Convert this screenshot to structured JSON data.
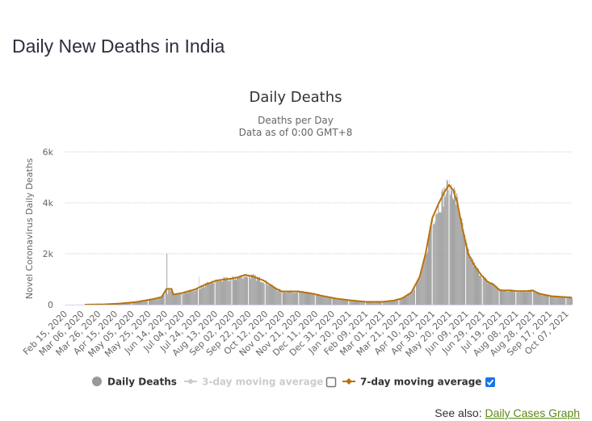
{
  "page": {
    "title": "Daily New Deaths in India",
    "see_also_label": "See also:",
    "see_also_link": "Daily Cases Graph"
  },
  "colors": {
    "bars": "#999999",
    "ma7": "#b8720b",
    "ma3_disabled": "#cccccc",
    "grid": "#e6e6e6",
    "axis": "#ccd6eb",
    "link": "#5c8a18",
    "checkbox_checked": "#1a73e8"
  },
  "chart_data": {
    "type": "bar",
    "title": "Daily Deaths",
    "subtitle_lines": [
      "Deaths per Day",
      "Data as of 0:00 GMT+8"
    ],
    "xlabel": "",
    "ylabel": "Novel Coronavirus Daily Deaths",
    "ylim": [
      0,
      6000
    ],
    "yticks": [
      0,
      2000,
      4000,
      6000
    ],
    "ytick_labels": [
      "0",
      "2k",
      "4k",
      "6k"
    ],
    "grid": true,
    "x_start": "2020-02-15",
    "x_end": "2021-10-14",
    "xtick_labels": [
      "Feb 15, 2020",
      "Mar 06, 2020",
      "Mar 26, 2020",
      "Apr 15, 2020",
      "May 05, 2020",
      "May 25, 2020",
      "Jun 14, 2020",
      "Jul 04, 2020",
      "Jul 24, 2020",
      "Aug 13, 2020",
      "Sep 02, 2020",
      "Sep 22, 2020",
      "Oct 12, 2020",
      "Nov 01, 2020",
      "Nov 21, 2020",
      "Dec 11, 2020",
      "Dec 31, 2020",
      "Jan 20, 2021",
      "Feb 09, 2021",
      "Mar 01, 2021",
      "Mar 21, 2021",
      "Apr 10, 2021",
      "Apr 30, 2021",
      "May 20, 2021",
      "Jun 09, 2021",
      "Jun 29, 2021",
      "Jul 19, 2021",
      "Aug 08, 2021",
      "Aug 28, 2021",
      "Sep 17, 2021",
      "Oct 07, 2021"
    ],
    "legend": {
      "placement": "bottom-center",
      "items": [
        {
          "label": "Daily Deaths",
          "enabled": true
        },
        {
          "label": "3-day moving average",
          "enabled": false,
          "checked": false
        },
        {
          "label": "7-day moving average",
          "enabled": true,
          "checked": true
        }
      ]
    },
    "series": [
      {
        "name": "7-day moving average",
        "type": "line",
        "points": [
          [
            "2020-03-10",
            0
          ],
          [
            "2020-04-01",
            10
          ],
          [
            "2020-04-20",
            40
          ],
          [
            "2020-05-10",
            100
          ],
          [
            "2020-05-31",
            220
          ],
          [
            "2020-06-10",
            300
          ],
          [
            "2020-06-16",
            620
          ],
          [
            "2020-06-22",
            620
          ],
          [
            "2020-06-24",
            400
          ],
          [
            "2020-07-04",
            450
          ],
          [
            "2020-07-20",
            600
          ],
          [
            "2020-08-01",
            780
          ],
          [
            "2020-08-15",
            950
          ],
          [
            "2020-09-01",
            1020
          ],
          [
            "2020-09-10",
            1080
          ],
          [
            "2020-09-18",
            1170
          ],
          [
            "2020-09-28",
            1100
          ],
          [
            "2020-10-10",
            950
          ],
          [
            "2020-10-25",
            630
          ],
          [
            "2020-11-01",
            520
          ],
          [
            "2020-11-10",
            520
          ],
          [
            "2020-11-20",
            520
          ],
          [
            "2020-12-05",
            450
          ],
          [
            "2020-12-20",
            340
          ],
          [
            "2021-01-05",
            240
          ],
          [
            "2021-01-25",
            160
          ],
          [
            "2021-02-10",
            110
          ],
          [
            "2021-03-01",
            110
          ],
          [
            "2021-03-15",
            160
          ],
          [
            "2021-03-25",
            250
          ],
          [
            "2021-04-05",
            480
          ],
          [
            "2021-04-15",
            1100
          ],
          [
            "2021-04-22",
            2000
          ],
          [
            "2021-04-30",
            3400
          ],
          [
            "2021-05-08",
            4000
          ],
          [
            "2021-05-15",
            4450
          ],
          [
            "2021-05-20",
            4700
          ],
          [
            "2021-05-25",
            4500
          ],
          [
            "2021-05-30",
            4000
          ],
          [
            "2021-06-05",
            3000
          ],
          [
            "2021-06-12",
            2000
          ],
          [
            "2021-06-20",
            1500
          ],
          [
            "2021-06-28",
            1150
          ],
          [
            "2021-07-05",
            900
          ],
          [
            "2021-07-12",
            800
          ],
          [
            "2021-07-20",
            560
          ],
          [
            "2021-08-01",
            560
          ],
          [
            "2021-08-10",
            530
          ],
          [
            "2021-08-20",
            530
          ],
          [
            "2021-08-28",
            560
          ],
          [
            "2021-09-05",
            430
          ],
          [
            "2021-09-20",
            330
          ],
          [
            "2021-10-14",
            280
          ]
        ]
      },
      {
        "name": "Daily Deaths",
        "type": "bar",
        "notable_values": [
          [
            "2020-06-16",
            2000
          ],
          [
            "2020-07-24",
            1100
          ],
          [
            "2021-05-19",
            4500
          ],
          [
            "2021-05-20",
            4900
          ],
          [
            "2021-05-24",
            4200
          ]
        ]
      }
    ]
  }
}
